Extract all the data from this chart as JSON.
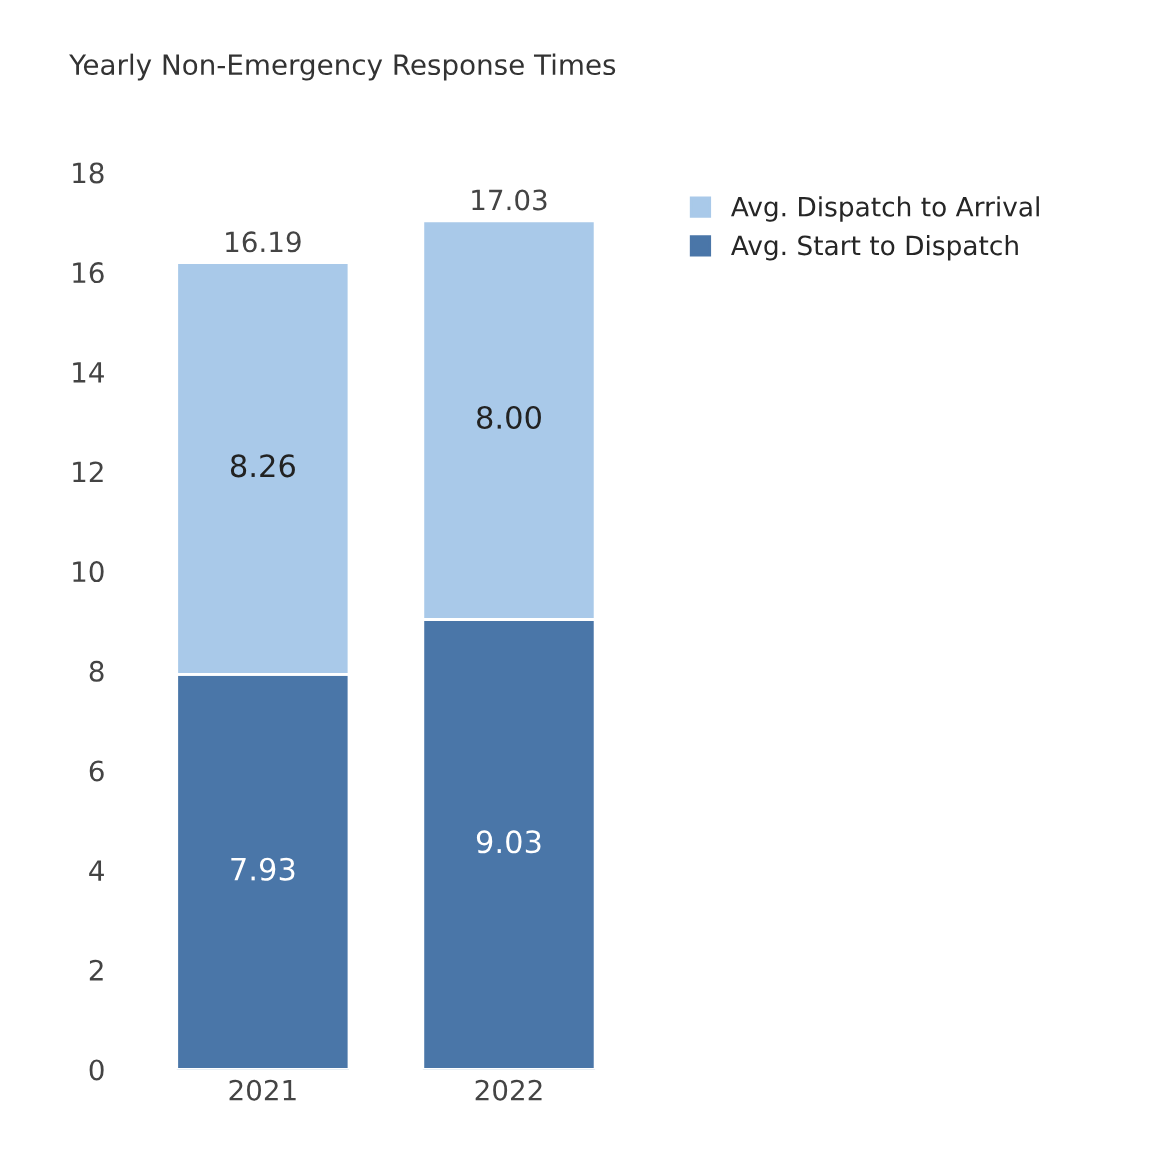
{
  "chart_data": {
    "type": "bar",
    "title": "Yearly Non-Emergency Response Times",
    "categories": [
      "2021",
      "2022"
    ],
    "stacked": true,
    "series": [
      {
        "name": "Avg. Start to Dispatch",
        "color": "#4a76a8",
        "values": [
          7.93,
          9.03
        ],
        "value_labels": [
          "7.93",
          "9.03"
        ]
      },
      {
        "name": "Avg. Dispatch to Arrival",
        "color": "#a9c9e9",
        "values": [
          8.26,
          8.0
        ],
        "value_labels": [
          "8.26",
          "8.00"
        ]
      }
    ],
    "totals": [
      "16.19",
      "17.03"
    ],
    "ylim": [
      0,
      18
    ],
    "yticks": [
      0,
      2,
      4,
      6,
      8,
      10,
      12,
      14,
      16,
      18
    ],
    "grid": false,
    "legend": "top right"
  }
}
